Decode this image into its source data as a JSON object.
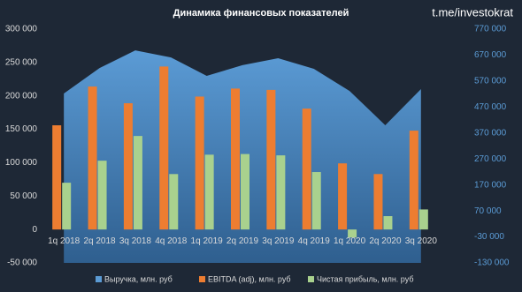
{
  "chart_data": {
    "type": "combo",
    "title": "Динамика финансовых показателей",
    "watermark": "t.me/investokrat",
    "categories": [
      "1q 2018",
      "2q 2018",
      "3q 2018",
      "4q 2018",
      "1q 2019",
      "2q 2019",
      "3q 2019",
      "4q 2019",
      "1q 2020",
      "2q 2020",
      "3q 2020"
    ],
    "series": [
      {
        "name": "Выручка, млн. руб",
        "color": "#5b9bd5",
        "kind": "area",
        "axis": "y2",
        "values": [
          522000,
          620000,
          688000,
          661000,
          590000,
          631000,
          658000,
          617000,
          532000,
          400000,
          539000
        ]
      },
      {
        "name": "EBITDA (adj), млн. руб",
        "color": "#ed7d31",
        "kind": "bar",
        "values": [
          156000,
          214000,
          189000,
          244000,
          199000,
          211000,
          209000,
          181000,
          99000,
          83000,
          148000
        ]
      },
      {
        "name": "Чистая прибыль, млн. руб",
        "color": "#a9d18e",
        "kind": "bar",
        "values": [
          70000,
          103000,
          140000,
          83000,
          112000,
          113000,
          111000,
          86000,
          -12000,
          20000,
          30000
        ]
      }
    ],
    "ylim": [
      -50000,
      300000
    ],
    "yticks": [
      {
        "value": -50000,
        "label": "-50 000"
      },
      {
        "value": 0,
        "label": "0"
      },
      {
        "value": 50000,
        "label": "50 000"
      },
      {
        "value": 100000,
        "label": "100 000"
      },
      {
        "value": 150000,
        "label": "150 000"
      },
      {
        "value": 200000,
        "label": "200 000"
      },
      {
        "value": 250000,
        "label": "250 000"
      },
      {
        "value": 300000,
        "label": "300 000"
      }
    ],
    "y2lim": [
      -130000,
      770000
    ],
    "y2ticks": [
      {
        "value": -130000,
        "label": "-130 000"
      },
      {
        "value": -30000,
        "label": "-30 000"
      },
      {
        "value": 70000,
        "label": "70 000"
      },
      {
        "value": 170000,
        "label": "170 000"
      },
      {
        "value": 270000,
        "label": "270 000"
      },
      {
        "value": 370000,
        "label": "370 000"
      },
      {
        "value": 470000,
        "label": "470 000"
      },
      {
        "value": 570000,
        "label": "570 000"
      },
      {
        "value": 670000,
        "label": "670 000"
      },
      {
        "value": 770000,
        "label": "770 000"
      }
    ],
    "y2_color": "#5b9bd5"
  }
}
